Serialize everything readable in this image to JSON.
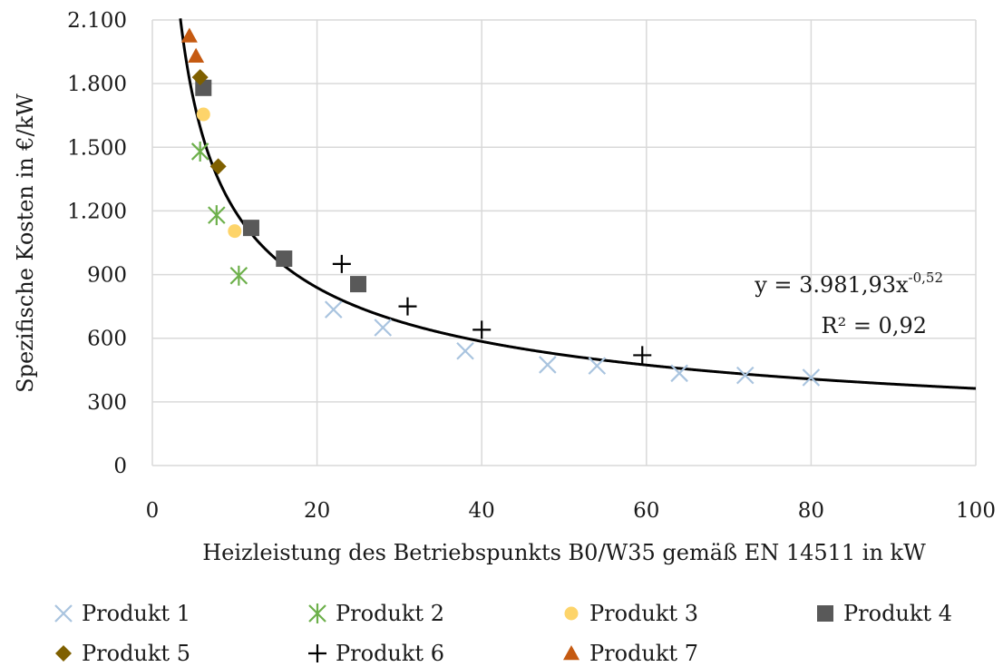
{
  "chart_data": {
    "type": "scatter",
    "xlabel": "Heizleistung des Betriebspunkts B0/W35 gemäß EN 14511 in kW",
    "ylabel": "Spezifische Kosten in €/kW",
    "xlim": [
      0,
      100
    ],
    "ylim": [
      0,
      2100
    ],
    "x_ticks": [
      0,
      20,
      40,
      60,
      80,
      100
    ],
    "x_tick_labels": [
      "0",
      "20",
      "40",
      "60",
      "80",
      "100"
    ],
    "y_ticks": [
      0,
      300,
      600,
      900,
      1200,
      1500,
      1800,
      2100
    ],
    "y_tick_labels": [
      "0",
      "300",
      "600",
      "900",
      "1.200",
      "1.500",
      "1.800",
      "2.100"
    ],
    "grid": true,
    "legend_position": "bottom",
    "series": [
      {
        "name": "Produkt 1",
        "marker": "x",
        "color": "#a9c4df",
        "points": [
          [
            22,
            735
          ],
          [
            28,
            650
          ],
          [
            38,
            540
          ],
          [
            48,
            475
          ],
          [
            54,
            470
          ],
          [
            64,
            435
          ],
          [
            72,
            425
          ],
          [
            80,
            415
          ]
        ]
      },
      {
        "name": "Produkt 2",
        "marker": "asterisk",
        "color": "#6db04b",
        "points": [
          [
            5.8,
            1480
          ],
          [
            7.8,
            1180
          ],
          [
            10.5,
            895
          ]
        ]
      },
      {
        "name": "Produkt 3",
        "marker": "circle",
        "color": "#fdd46a",
        "points": [
          [
            6.2,
            1655
          ],
          [
            10,
            1105
          ]
        ]
      },
      {
        "name": "Produkt 4",
        "marker": "square",
        "color": "#595959",
        "points": [
          [
            6.2,
            1780
          ],
          [
            12,
            1120
          ],
          [
            16,
            975
          ],
          [
            25,
            855
          ]
        ]
      },
      {
        "name": "Produkt 5",
        "marker": "diamond",
        "color": "#7f6000",
        "points": [
          [
            5.8,
            1830
          ],
          [
            8,
            1410
          ]
        ]
      },
      {
        "name": "Produkt 6",
        "marker": "plus",
        "color": "#000000",
        "points": [
          [
            23,
            950
          ],
          [
            31,
            750
          ],
          [
            40,
            640
          ],
          [
            59.5,
            520
          ]
        ]
      },
      {
        "name": "Produkt 7",
        "marker": "triangle",
        "color": "#c55a11",
        "points": [
          [
            4.5,
            2025
          ],
          [
            5.3,
            1930
          ]
        ]
      }
    ],
    "trendline": {
      "type": "power",
      "a": 3981.93,
      "b": -0.52,
      "color": "#000000"
    },
    "annotations": {
      "equation_prefix": "y = 3.981,93x",
      "equation_exponent": "-0,52",
      "r_squared": "R² = 0,92"
    }
  }
}
